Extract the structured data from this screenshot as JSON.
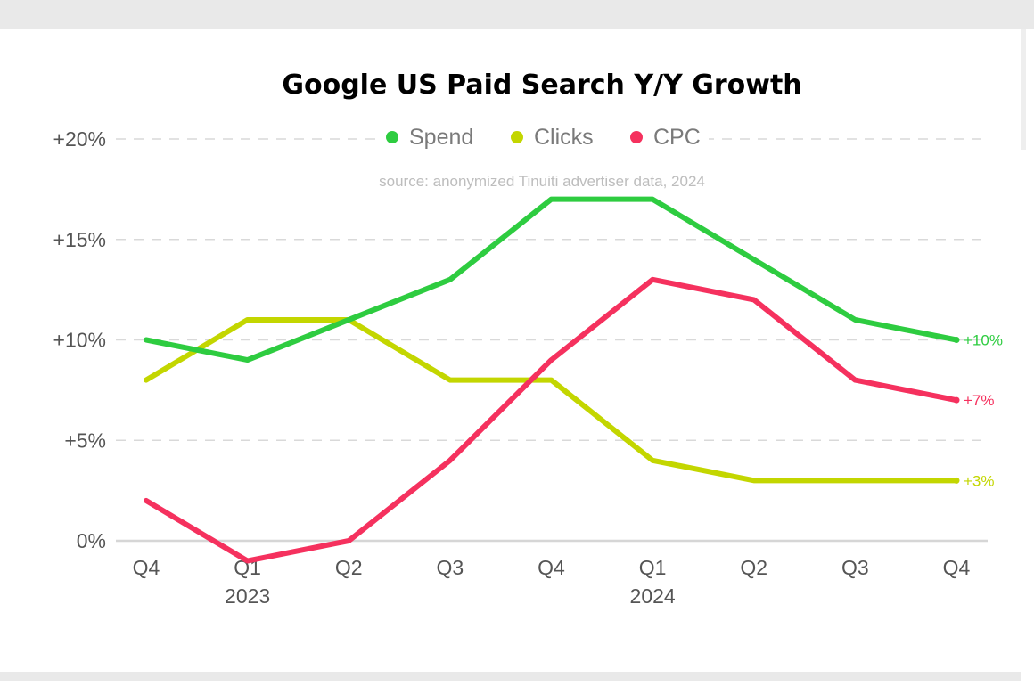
{
  "chart_data": {
    "type": "line",
    "title": "Google US Paid Search Y/Y Growth",
    "subtitle": "source: anonymized Tinuiti advertiser data, 2024",
    "categories": [
      "Q4",
      "Q1",
      "Q2",
      "Q3",
      "Q4",
      "Q1",
      "Q2",
      "Q3",
      "Q4"
    ],
    "year_labels": [
      {
        "index": 1,
        "label": "2023"
      },
      {
        "index": 5,
        "label": "2024"
      }
    ],
    "series": [
      {
        "name": "Spend",
        "color": "#2ecc40",
        "values": [
          10,
          9,
          11,
          13,
          17,
          17,
          14,
          11,
          10
        ],
        "end_label": "+10%"
      },
      {
        "name": "Clicks",
        "color": "#c3d600",
        "values": [
          8,
          11,
          11,
          8,
          8,
          4,
          3,
          3,
          3
        ],
        "end_label": "+3%"
      },
      {
        "name": "CPC",
        "color": "#f5315e",
        "values": [
          2,
          -1,
          0,
          4,
          9,
          13,
          12,
          8,
          7
        ],
        "end_label": "+7%"
      }
    ],
    "yticks": [
      0,
      5,
      10,
      15,
      20
    ],
    "ytick_labels": [
      "0%",
      "+5%",
      "+10%",
      "+15%",
      "+20%"
    ],
    "ylim": [
      -1,
      20
    ],
    "legend_position": "top-center",
    "grid": "horizontal-dashed"
  }
}
